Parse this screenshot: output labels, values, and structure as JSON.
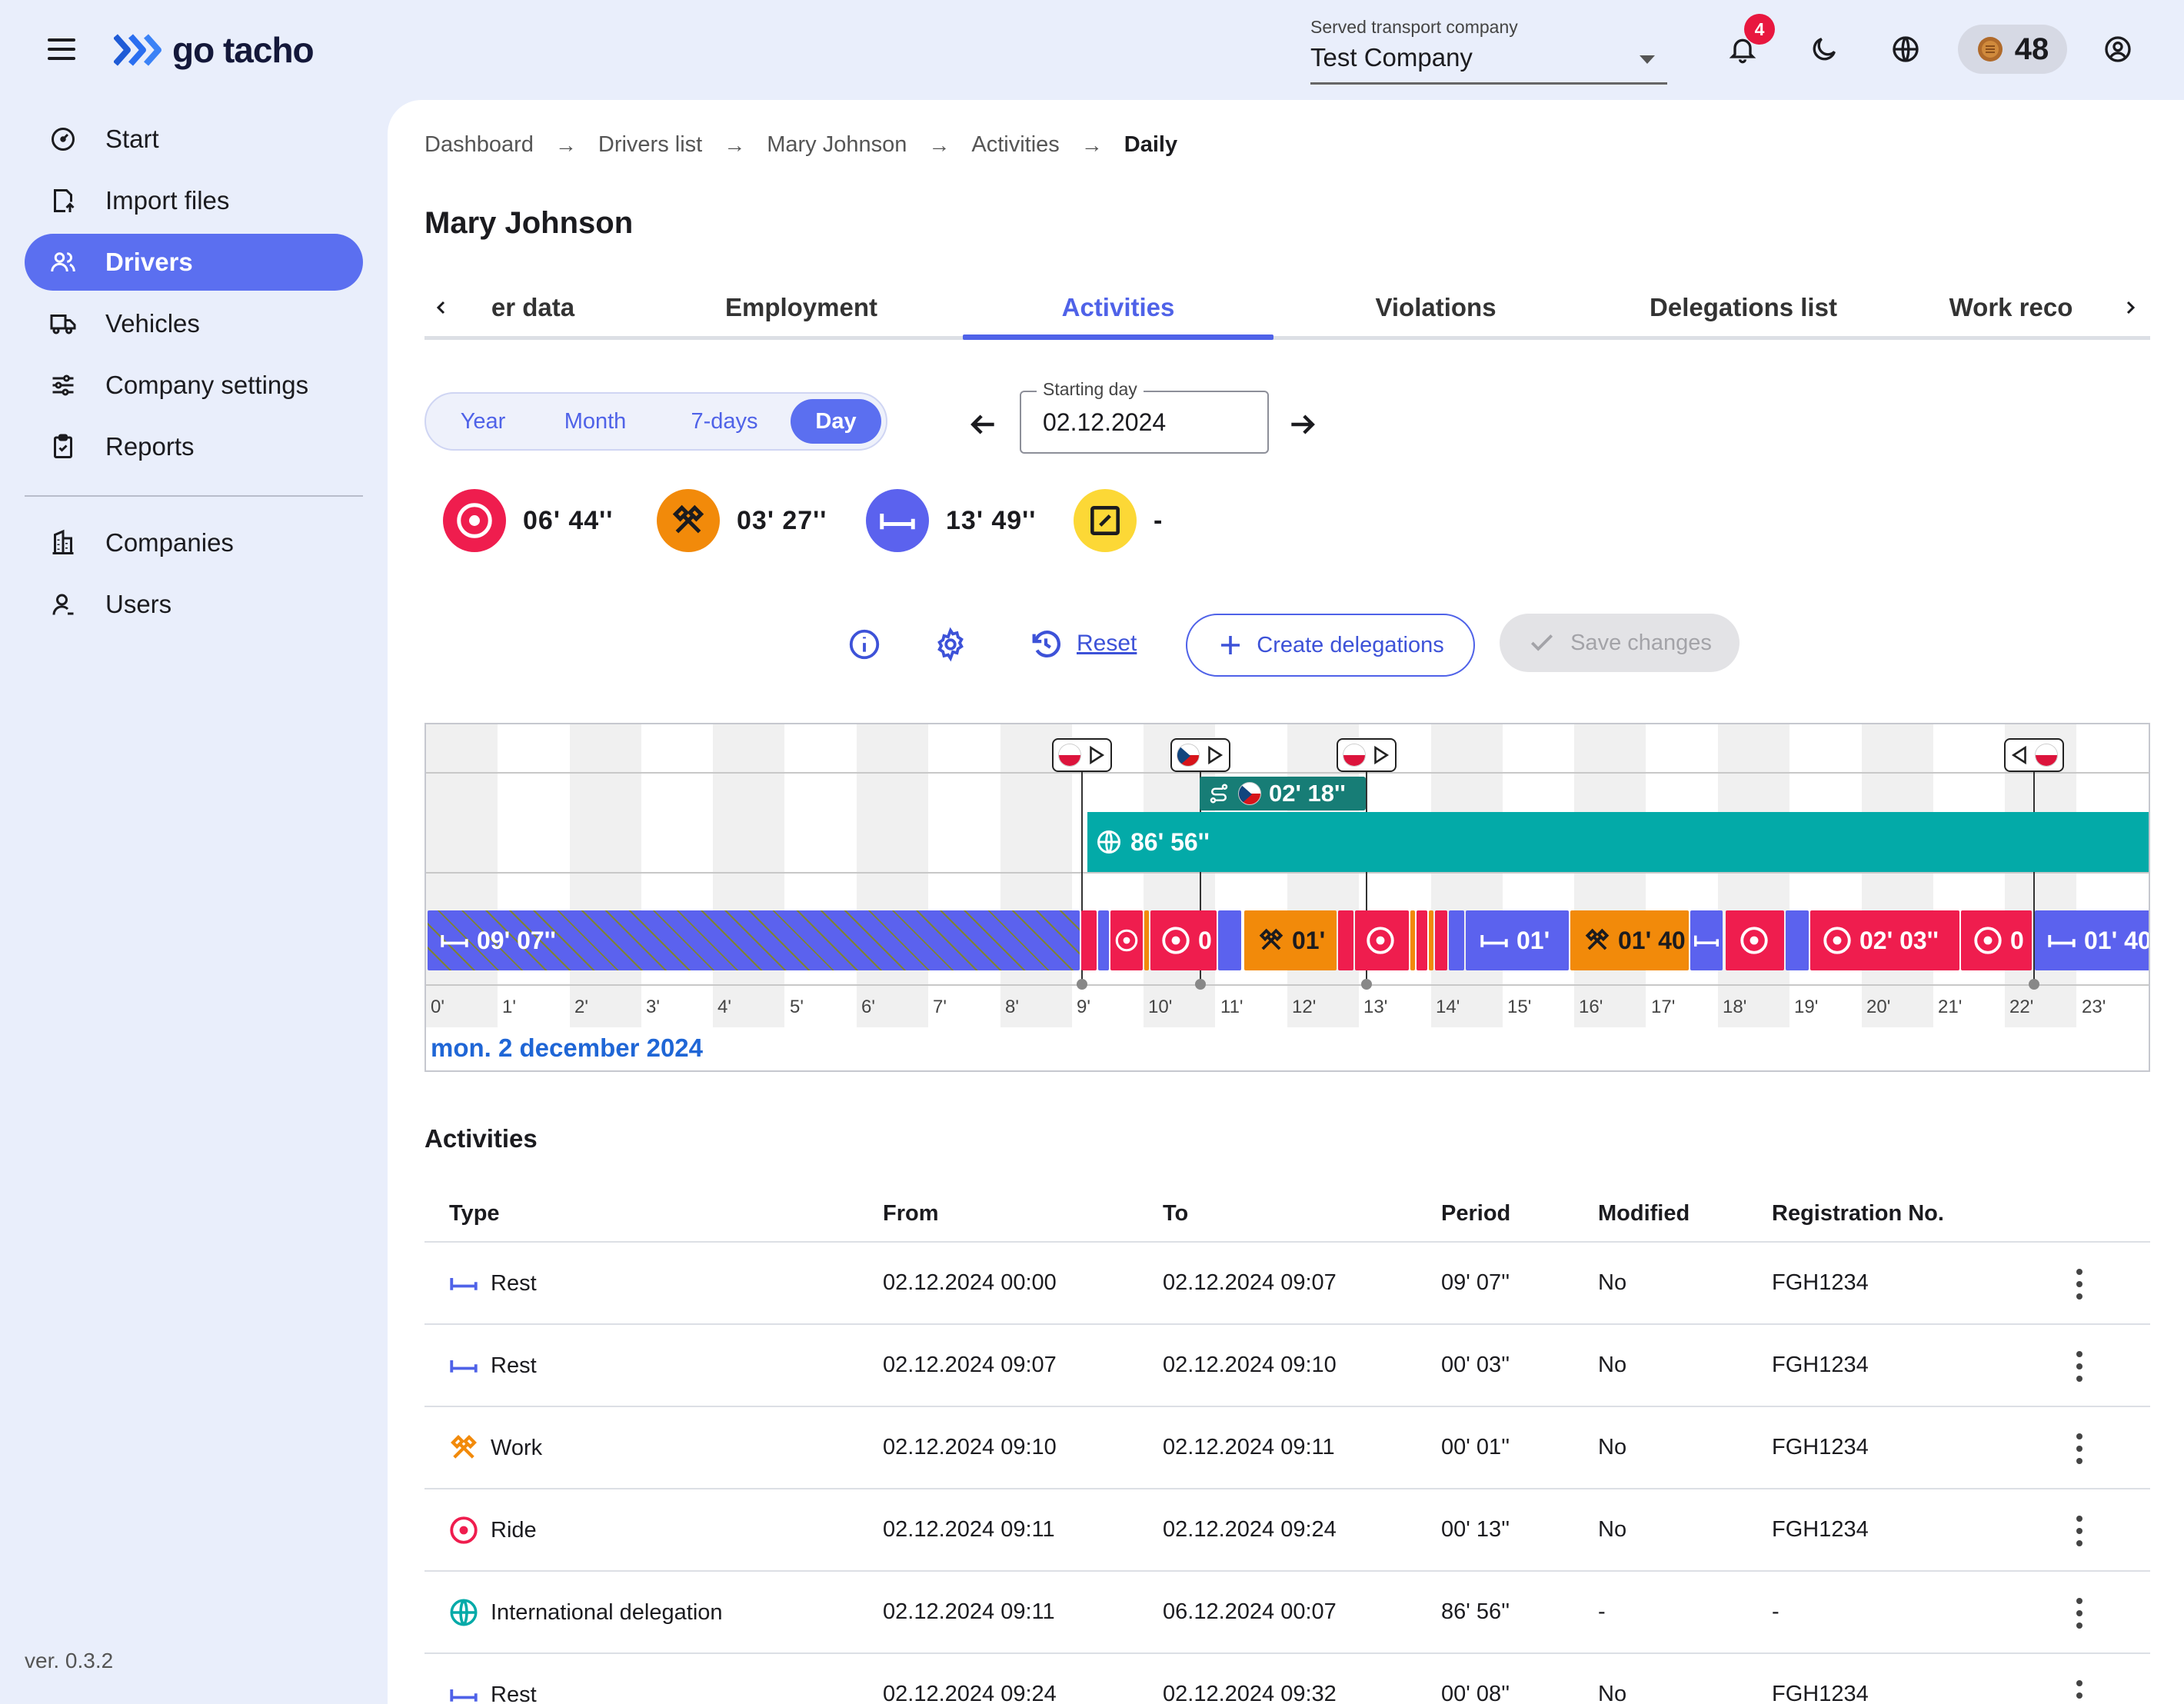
{
  "app": {
    "logo_text": "go tacho",
    "company_label": "Served transport company",
    "company_value": "Test Company",
    "notifications_count": "4",
    "credits": "48",
    "version": "ver. 0.3.2"
  },
  "sidebar": {
    "items": [
      {
        "label": "Start",
        "icon": "gauge-icon"
      },
      {
        "label": "Import files",
        "icon": "import-file-icon"
      },
      {
        "label": "Drivers",
        "icon": "users-icon",
        "active": true
      },
      {
        "label": "Vehicles",
        "icon": "truck-icon"
      },
      {
        "label": "Company settings",
        "icon": "sliders-icon"
      },
      {
        "label": "Reports",
        "icon": "clipboard-icon"
      },
      {
        "label": "Companies",
        "icon": "building-icon"
      },
      {
        "label": "Users",
        "icon": "user-icon"
      }
    ]
  },
  "breadcrumb": {
    "items": [
      "Dashboard",
      "Drivers list",
      "Mary Johnson",
      "Activities"
    ],
    "current": "Daily"
  },
  "page_title": "Mary Johnson",
  "tabs": [
    "er data",
    "Employment",
    "Activities",
    "Violations",
    "Delegations list",
    "Work reco"
  ],
  "active_tab": "Activities",
  "period": {
    "options": [
      "Year",
      "Month",
      "7-days",
      "Day"
    ],
    "active": "Day"
  },
  "date_field": {
    "label": "Starting day",
    "value": "02.12.2024"
  },
  "summary": {
    "ride": "06' 44''",
    "work": "03' 27''",
    "rest": "13' 49''",
    "availability": "-"
  },
  "actions": {
    "reset": "Reset",
    "create": "Create delegations",
    "save": "Save changes"
  },
  "timeline": {
    "hours": [
      "0'",
      "1'",
      "2'",
      "3'",
      "4'",
      "5'",
      "6'",
      "7'",
      "8'",
      "9'",
      "10'",
      "11'",
      "12'",
      "13'",
      "14'",
      "15'",
      "16'",
      "17'",
      "18'",
      "19'",
      "20'",
      "21'",
      "22'",
      "23'"
    ],
    "date_label": "mon. 2 december 2024",
    "border_crossing": "02' 18''",
    "delegation": "86' 56''",
    "labels": {
      "rest_first": "09' 07''",
      "ride_a": "0",
      "work_a": "01'",
      "rest_b": "01'",
      "work_b": "01' 40",
      "ride_b": "02' 03''",
      "ride_c": "0",
      "rest_c": "01' 40"
    },
    "colors": {
      "ride": "#ef1d4e",
      "work": "#f28a0a",
      "rest": "#5b62ee",
      "availability": "#fcd836",
      "delegation": "#03aaa8",
      "border": "#177d76"
    }
  },
  "activities": {
    "title": "Activities",
    "columns": [
      "Type",
      "From",
      "To",
      "Period",
      "Modified",
      "Registration No."
    ],
    "rows": [
      {
        "type": "Rest",
        "icon": "rest-icon",
        "from": "02.12.2024 00:00",
        "to": "02.12.2024 09:07",
        "period": "09' 07''",
        "modified": "No",
        "reg": "FGH1234"
      },
      {
        "type": "Rest",
        "icon": "rest-icon",
        "from": "02.12.2024 09:07",
        "to": "02.12.2024 09:10",
        "period": "00' 03''",
        "modified": "No",
        "reg": "FGH1234"
      },
      {
        "type": "Work",
        "icon": "work-icon",
        "from": "02.12.2024 09:10",
        "to": "02.12.2024 09:11",
        "period": "00' 01''",
        "modified": "No",
        "reg": "FGH1234"
      },
      {
        "type": "Ride",
        "icon": "ride-icon",
        "from": "02.12.2024 09:11",
        "to": "02.12.2024 09:24",
        "period": "00' 13''",
        "modified": "No",
        "reg": "FGH1234"
      },
      {
        "type": "International delegation",
        "icon": "globe-icon",
        "from": "02.12.2024 09:11",
        "to": "06.12.2024 00:07",
        "period": "86' 56''",
        "modified": "-",
        "reg": "-"
      },
      {
        "type": "Rest",
        "icon": "rest-icon",
        "from": "02.12.2024 09:24",
        "to": "02.12.2024 09:32",
        "period": "00' 08''",
        "modified": "No",
        "reg": "FGH1234"
      }
    ]
  }
}
